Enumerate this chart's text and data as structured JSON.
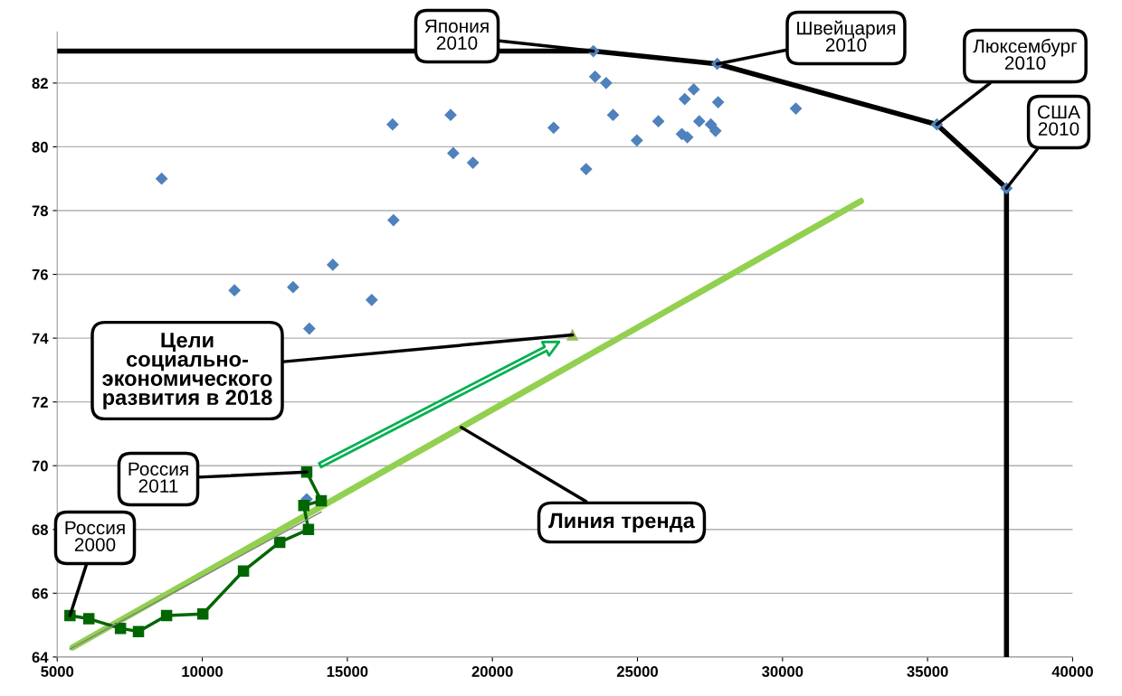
{
  "chart_data": {
    "type": "scatter",
    "xlim": [
      5000,
      40000
    ],
    "xticks": [
      5000,
      10000,
      15000,
      20000,
      25000,
      30000,
      35000,
      40000
    ],
    "ylim": [
      64,
      83.6
    ],
    "yticks": [
      64,
      66,
      68,
      70,
      72,
      74,
      76,
      78,
      80,
      82
    ],
    "grid": "y",
    "legend": false,
    "series": [
      {
        "type": "line",
        "color": "#000000",
        "marker": "none",
        "x": [
          5000,
          23480,
          27750,
          35320,
          37720,
          37720
        ],
        "values": [
          83.0,
          83.0,
          82.6,
          80.7,
          78.7,
          64
        ]
      },
      {
        "color": "#4f81bd",
        "marker": "diamond",
        "x": [
          8600,
          11110,
          13130,
          13690,
          14500,
          15840,
          16560,
          16590,
          18560,
          18650,
          19330,
          22110,
          23230,
          23480,
          23540,
          23920,
          24160,
          24980,
          25720,
          26630,
          26940,
          27780,
          26530,
          26720,
          27130,
          27530,
          27690,
          30460,
          27750,
          35320,
          37720,
          13600
        ],
        "values": [
          79.0,
          75.5,
          75.6,
          74.3,
          76.3,
          75.2,
          80.7,
          77.7,
          81.0,
          79.8,
          79.5,
          80.6,
          79.3,
          83.0,
          82.2,
          82.0,
          81.0,
          80.2,
          80.8,
          81.5,
          81.8,
          81.4,
          80.4,
          80.3,
          80.8,
          80.7,
          80.5,
          81.2,
          82.6,
          80.7,
          78.7,
          68.95
        ]
      },
      {
        "type": "line",
        "color": "#808080",
        "marker": "none",
        "x": [
          5440,
          14100
        ],
        "values": [
          64.25,
          68.55
        ]
      },
      {
        "type": "line",
        "color": "#92d050",
        "marker": "none",
        "x": [
          5530,
          32700
        ],
        "values": [
          64.3,
          78.3
        ]
      },
      {
        "type": "line",
        "color": "#006600",
        "marker": "square",
        "x": [
          5440,
          6090,
          7180,
          7800,
          8770,
          10020,
          11420,
          12670,
          13660,
          13500,
          14100,
          13600
        ],
        "values": [
          65.3,
          65.2,
          64.9,
          64.8,
          65.3,
          65.35,
          66.7,
          67.6,
          68.0,
          68.75,
          68.9,
          69.8
        ]
      },
      {
        "color": "#9bbb59",
        "marker": "triangle",
        "x": [
          22760
        ],
        "values": [
          74.1
        ]
      }
    ],
    "annotations": [
      {
        "text": "Япония\n2010",
        "x": 23480,
        "y": 83.0
      },
      {
        "text": "Швейцария\n2010",
        "x": 27750,
        "y": 82.6
      },
      {
        "text": "Люксембург\n2010",
        "x": 35320,
        "y": 80.7
      },
      {
        "text": "США\n2010",
        "x": 37720,
        "y": 78.7
      },
      {
        "text": "Цели\nсоциально-\nэкономического\nразвития в 2018",
        "x": 22760,
        "y": 74.1
      },
      {
        "text": "Россия\n2011",
        "x": 13600,
        "y": 69.8
      },
      {
        "text": "Россия\n2000",
        "x": 5440,
        "y": 65.3
      },
      {
        "text": "Линия тренда",
        "x": 18930,
        "y": 71.2
      }
    ]
  }
}
